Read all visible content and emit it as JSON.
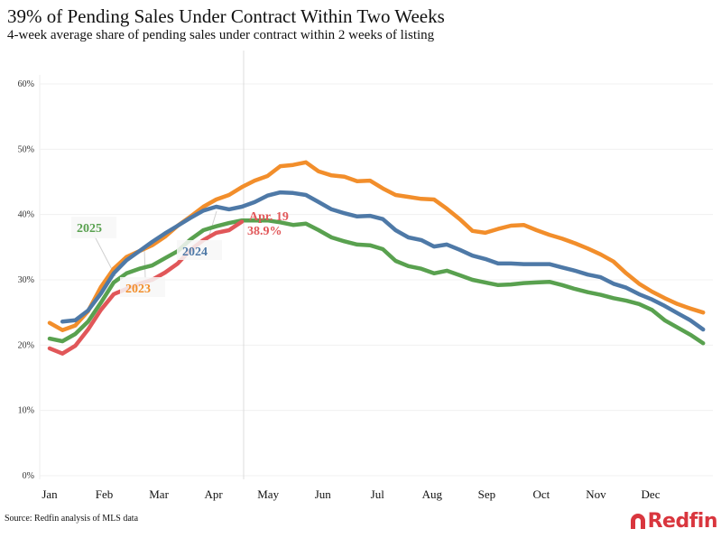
{
  "header": {
    "title": "39% of Pending Sales Under Contract Within Two Weeks",
    "subtitle": "4-week average share of pending sales under contract within 2 weeks of listing"
  },
  "footer": {
    "source": "Source: Redfin analysis of MLS data",
    "logo_text": "Redfin",
    "logo_icon": "redfin-r-icon"
  },
  "chart_data": {
    "type": "line",
    "title": "39% of Pending Sales Under Contract Within Two Weeks",
    "subtitle": "4-week average share of pending sales under contract within 2 weeks of listing",
    "xlabel": "",
    "ylabel": "",
    "x_unit": "week of year",
    "x_tick_labels": [
      "Jan",
      "Feb",
      "Mar",
      "Apr",
      "May",
      "Jun",
      "Jul",
      "Aug",
      "Sep",
      "Oct",
      "Nov",
      "Dec"
    ],
    "y_tick_labels": [
      "0%",
      "10%",
      "20%",
      "30%",
      "40%",
      "50%",
      "60%"
    ],
    "y_ticks": [
      0,
      10,
      20,
      30,
      40,
      50,
      60
    ],
    "ylim": [
      0,
      60
    ],
    "grid": true,
    "legend": "inline labels",
    "reference_line": {
      "label": "Apr. 19"
    },
    "annotation": {
      "text_line1": "Apr. 19",
      "text_line2": "38.9%",
      "series": "red"
    },
    "series": [
      {
        "name": "2023",
        "color": "#f28e2b",
        "start_week": 0,
        "values": [
          23.4,
          22.3,
          23.0,
          25.2,
          28.9,
          31.7,
          33.5,
          34.4,
          35.3,
          36.6,
          38.3,
          39.7,
          41.2,
          42.3,
          43.0,
          44.2,
          45.2,
          45.9,
          47.4,
          47.6,
          48.0,
          46.6,
          46.0,
          45.8,
          45.1,
          45.2,
          44.0,
          43.0,
          42.7,
          42.4,
          42.3,
          40.9,
          39.3,
          37.5,
          37.2,
          37.8,
          38.3,
          38.4,
          37.6,
          36.9,
          36.3,
          35.6,
          34.8,
          33.9,
          32.8,
          31.0,
          29.4,
          28.2,
          27.2,
          26.3,
          25.6,
          25.0
        ]
      },
      {
        "name": "2024",
        "color": "#4e79a7",
        "start_week": 1,
        "values": [
          23.6,
          23.8,
          25.3,
          27.9,
          31.0,
          33.0,
          34.4,
          35.8,
          37.1,
          38.3,
          39.5,
          40.6,
          41.2,
          40.8,
          41.2,
          41.9,
          42.9,
          43.4,
          43.3,
          43.0,
          41.9,
          40.8,
          40.2,
          39.7,
          39.8,
          39.3,
          37.6,
          36.5,
          36.1,
          35.1,
          35.4,
          34.6,
          33.7,
          33.2,
          32.5,
          32.5,
          32.4,
          32.4,
          32.4,
          31.9,
          31.4,
          30.8,
          30.4,
          29.4,
          28.8,
          27.8,
          27.0,
          26.0,
          24.9,
          23.8,
          22.4
        ]
      },
      {
        "name": "2025",
        "color": "#59a14f",
        "start_week": 0,
        "values": [
          21.0,
          20.6,
          21.7,
          23.6,
          26.5,
          29.6,
          31.0,
          31.7,
          32.2,
          33.3,
          34.4,
          36.2,
          37.6,
          38.2,
          38.7,
          39.1,
          39.1,
          39.1,
          38.8,
          38.4,
          38.6,
          37.6,
          36.5,
          35.9,
          35.4,
          35.3,
          34.7,
          32.9,
          32.1,
          31.7,
          31.0,
          31.4,
          30.7,
          30.0,
          29.6,
          29.2,
          29.3,
          29.5,
          29.6,
          29.7,
          29.2,
          28.6,
          28.1,
          27.7,
          27.2,
          26.8,
          26.3,
          25.4,
          23.8,
          22.7,
          21.6,
          20.3
        ]
      },
      {
        "name": "",
        "color": "#e15759",
        "start_week": 0,
        "values": [
          19.5,
          18.7,
          19.9,
          22.4,
          25.4,
          27.8,
          28.6,
          29.4,
          30.0,
          31.1,
          32.5,
          34.6,
          36.1,
          37.2,
          37.6,
          38.9
        ]
      }
    ],
    "inline_labels": [
      {
        "text": "2025",
        "color": "#59a14f"
      },
      {
        "text": "2024",
        "color": "#4e79a7"
      },
      {
        "text": "2023",
        "color": "#f28e2b"
      }
    ]
  }
}
